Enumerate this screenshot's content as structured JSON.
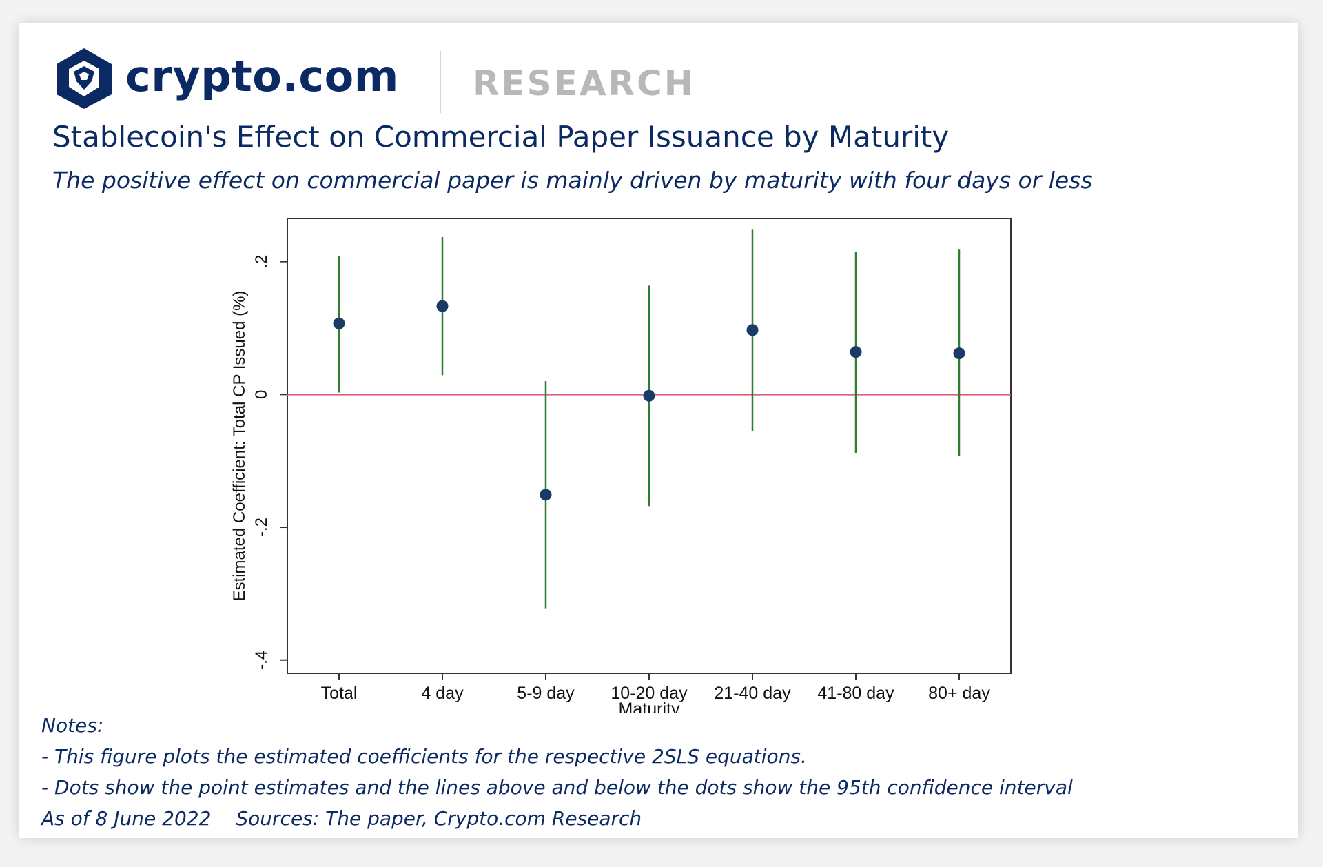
{
  "brand": {
    "logo": "crypto-com-lion-shield-icon",
    "name": "crypto.com",
    "section": "RESEARCH",
    "colors": {
      "navy": "#0b2a63",
      "gray": "#b8b8b8"
    }
  },
  "title": "Stablecoin's Effect on Commercial Paper Issuance by Maturity",
  "subtitle": "The positive effect on commercial paper is mainly driven by maturity with four days or less",
  "chart_data": {
    "type": "scatter",
    "errorbars": true,
    "xlabel": "Maturity",
    "ylabel": "Estimated Coefficient: Total CP Issued (%)",
    "categories": [
      "Total",
      "4 day",
      "5-9 day",
      "10-20 day",
      "21-40 day",
      "41-80 day",
      "80+ day"
    ],
    "estimates": [
      0.107,
      0.133,
      -0.151,
      -0.002,
      0.097,
      0.064,
      0.062
    ],
    "ci_lower": [
      0.003,
      0.029,
      -0.322,
      -0.168,
      -0.055,
      -0.088,
      -0.093
    ],
    "ci_upper": [
      0.209,
      0.237,
      0.02,
      0.164,
      0.249,
      0.215,
      0.218
    ],
    "yticks": [
      -0.4,
      -0.2,
      0,
      0.2
    ],
    "ytick_labels": [
      "-.4",
      "-.2",
      "0",
      ".2"
    ],
    "ylim": [
      -0.42,
      0.265
    ],
    "reference_line": 0,
    "grid": false,
    "colors": {
      "point": "#1b3a66",
      "interval": "#2e7d32",
      "reference": "#d9607a"
    }
  },
  "notes": {
    "heading": "Notes:",
    "lines": [
      "- This figure plots the estimated coefficients for the respective 2SLS equations.",
      "- Dots show the point estimates and the lines above and below the dots show the 95th confidence interval"
    ],
    "as_of": "As of 8 June 2022",
    "sources": "Sources: The paper, Crypto.com Research"
  }
}
